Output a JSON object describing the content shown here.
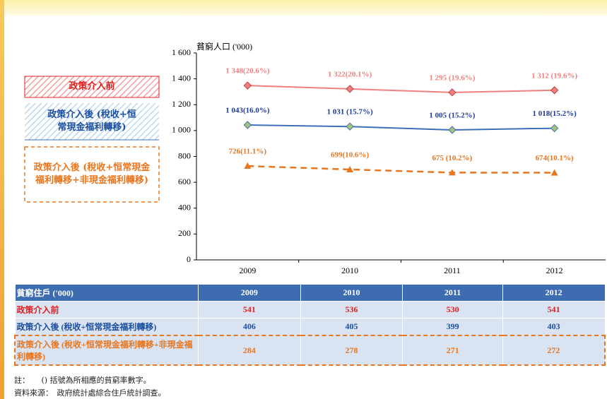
{
  "chart_data": {
    "type": "line",
    "y_label": "貧窮人口 ('000)",
    "categories": [
      "2009",
      "2010",
      "2011",
      "2012"
    ],
    "ylim": [
      0,
      1600
    ],
    "yticks": [
      0,
      200,
      400,
      600,
      800,
      {
        "value": 1000,
        "label": "1 000"
      },
      {
        "value": 1200,
        "label": "1 200"
      },
      {
        "value": 1400,
        "label": "1 400"
      },
      {
        "value": 1600,
        "label": "1 600"
      }
    ],
    "series": [
      {
        "name": "政策介入前",
        "color": "#f08080",
        "values": [
          1348,
          1322,
          1295,
          1312
        ],
        "value_labels": [
          "1 348(20.6%)",
          "1 322(20.1%)",
          "1 295 (19.6%)",
          "1 312 (19.6%)"
        ]
      },
      {
        "name": "政策介入後 (稅收+恒常現金福利轉移)",
        "color": "#3b6fb6",
        "values": [
          1043,
          1031,
          1005,
          1018
        ],
        "value_labels": [
          "1 043(16.0%)",
          "1 031 (15.7%)",
          "1 005 (15.2%)",
          "1 018(15.2%)"
        ]
      },
      {
        "name": "政策介入後 (稅收+恒常現金福利轉移+非現金福利轉移)",
        "color": "#e8761e",
        "values": [
          726,
          699,
          675,
          674
        ],
        "value_labels": [
          "726(11.1%)",
          "699(10.6%)",
          "675 (10.2%)",
          "674(10.1%)"
        ]
      }
    ]
  },
  "table": {
    "header": [
      "貧窮住戶 ('000)",
      "2009",
      "2010",
      "2011",
      "2012"
    ],
    "rows": [
      [
        "政策介入前",
        "541",
        "536",
        "530",
        "541"
      ],
      [
        "政策介入後 (稅收+恒常現金福利轉移)",
        "406",
        "405",
        "399",
        "403"
      ],
      [
        "政策介入後 (稅收+恒常現金福利轉移+非現金福利轉移)",
        "284",
        "278",
        "271",
        "272"
      ]
    ]
  },
  "notes": [
    "註：　　() 括號為所相應的貧窮率數字。",
    "資料來源：　政府統計處綜合住戶統計調查。"
  ]
}
